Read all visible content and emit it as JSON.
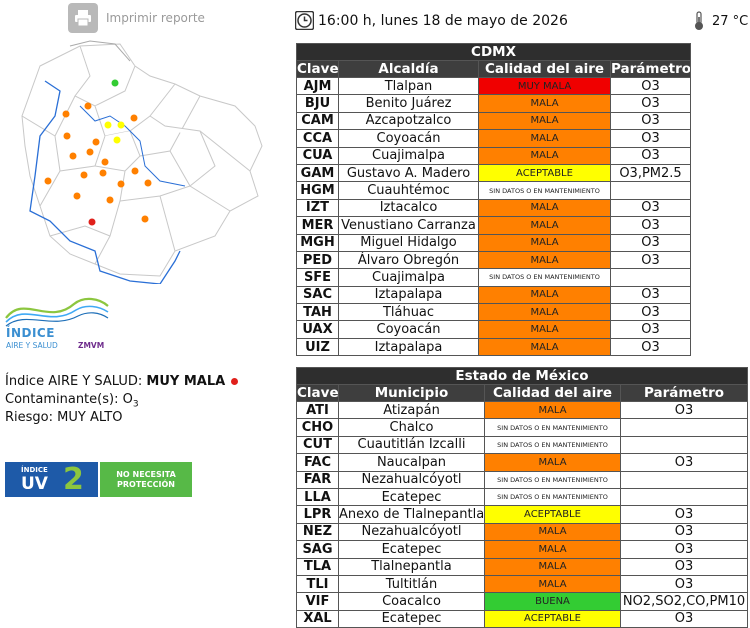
{
  "print": {
    "label": "Imprimir reporte",
    "icon": "printer-icon"
  },
  "header": {
    "datetime": "16:00 h, lunes 18 de mayo de 2026",
    "temperature": "27 °C",
    "clock_icon": "clock-icon",
    "thermo_icon": "thermometer-icon"
  },
  "logo": {
    "line1": "ÍNDICE",
    "line2": "AIRE Y SALUD",
    "line3": "ZMVM"
  },
  "indice": {
    "label": "Índice AIRE Y SALUD:",
    "value": "MUY MALA",
    "contaminante_label": "Contaminante(s):",
    "contaminante_value": "O",
    "contaminante_sub": "3",
    "riesgo_label": "Riesgo:",
    "riesgo_value": "MUY ALTO"
  },
  "uv": {
    "label1": "ÍNDICE",
    "label2": "UV",
    "value": "2",
    "advice_line1": "NO NECESITA",
    "advice_line2": "PROTECCIÓN"
  },
  "colors": {
    "mala": "#ff8000",
    "muy_mala": "#f00000",
    "aceptable": "#ffff00",
    "buena": "#33cc33"
  },
  "cdmx": {
    "title": "CDMX",
    "headers": [
      "Clave",
      "Alcaldía",
      "Calidad del aire",
      "Parámetro"
    ],
    "rows": [
      {
        "clave": "AJM",
        "name": "Tlalpan",
        "quality": "MUY MALA",
        "level": "muymala",
        "param": "O3"
      },
      {
        "clave": "BJU",
        "name": "Benito Juárez",
        "quality": "MALA",
        "level": "mala",
        "param": "O3"
      },
      {
        "clave": "CAM",
        "name": "Azcapotzalco",
        "quality": "MALA",
        "level": "mala",
        "param": "O3"
      },
      {
        "clave": "CCA",
        "name": "Coyoacán",
        "quality": "MALA",
        "level": "mala",
        "param": "O3"
      },
      {
        "clave": "CUA",
        "name": "Cuajimalpa",
        "quality": "MALA",
        "level": "mala",
        "param": "O3"
      },
      {
        "clave": "GAM",
        "name": "Gustavo A. Madero",
        "quality": "ACEPTABLE",
        "level": "aceptable",
        "param": "O3,PM2.5"
      },
      {
        "clave": "HGM",
        "name": "Cuauhtémoc",
        "quality": "SIN DATOS O EN MANTENIMIENTO",
        "level": "sin",
        "param": ""
      },
      {
        "clave": "IZT",
        "name": "Iztacalco",
        "quality": "MALA",
        "level": "mala",
        "param": "O3"
      },
      {
        "clave": "MER",
        "name": "Venustiano Carranza",
        "quality": "MALA",
        "level": "mala",
        "param": "O3"
      },
      {
        "clave": "MGH",
        "name": "Miguel Hidalgo",
        "quality": "MALA",
        "level": "mala",
        "param": "O3"
      },
      {
        "clave": "PED",
        "name": "Álvaro Obregón",
        "quality": "MALA",
        "level": "mala",
        "param": "O3"
      },
      {
        "clave": "SFE",
        "name": "Cuajimalpa",
        "quality": "SIN DATOS O EN MANTENIMIENTO",
        "level": "sin",
        "param": ""
      },
      {
        "clave": "SAC",
        "name": "Iztapalapa",
        "quality": "MALA",
        "level": "mala",
        "param": "O3"
      },
      {
        "clave": "TAH",
        "name": "Tláhuac",
        "quality": "MALA",
        "level": "mala",
        "param": "O3"
      },
      {
        "clave": "UAX",
        "name": "Coyoacán",
        "quality": "MALA",
        "level": "mala",
        "param": "O3"
      },
      {
        "clave": "UIZ",
        "name": "Iztapalapa",
        "quality": "MALA",
        "level": "mala",
        "param": "O3"
      }
    ]
  },
  "edomex": {
    "title": "Estado de México",
    "headers": [
      "Clave",
      "Municipio",
      "Calidad del aire",
      "Parámetro"
    ],
    "rows": [
      {
        "clave": "ATI",
        "name": "Atizapán",
        "quality": "MALA",
        "level": "mala",
        "param": "O3"
      },
      {
        "clave": "CHO",
        "name": "Chalco",
        "quality": "SIN DATOS O EN MANTENIMIENTO",
        "level": "sin",
        "param": ""
      },
      {
        "clave": "CUT",
        "name": "Cuautitlán Izcalli",
        "quality": "SIN DATOS O EN MANTENIMIENTO",
        "level": "sin",
        "param": ""
      },
      {
        "clave": "FAC",
        "name": "Naucalpan",
        "quality": "MALA",
        "level": "mala",
        "param": "O3"
      },
      {
        "clave": "FAR",
        "name": "Nezahualcóyotl",
        "quality": "SIN DATOS O EN MANTENIMIENTO",
        "level": "sin",
        "param": ""
      },
      {
        "clave": "LLA",
        "name": "Ecatepec",
        "quality": "SIN DATOS O EN MANTENIMIENTO",
        "level": "sin",
        "param": ""
      },
      {
        "clave": "LPR",
        "name": "Anexo de Tlalnepantla",
        "quality": "ACEPTABLE",
        "level": "aceptable",
        "param": "O3"
      },
      {
        "clave": "NEZ",
        "name": "Nezahualcóyotl",
        "quality": "MALA",
        "level": "mala",
        "param": "O3"
      },
      {
        "clave": "SAG",
        "name": "Ecatepec",
        "quality": "MALA",
        "level": "mala",
        "param": "O3"
      },
      {
        "clave": "TLA",
        "name": "Tlalnepantla",
        "quality": "MALA",
        "level": "mala",
        "param": "O3"
      },
      {
        "clave": "TLI",
        "name": "Tultitlán",
        "quality": "MALA",
        "level": "mala",
        "param": "O3"
      },
      {
        "clave": "VIF",
        "name": "Coacalco",
        "quality": "BUENA",
        "level": "buena",
        "param": "NO2,SO2,CO,PM10"
      },
      {
        "clave": "XAL",
        "name": "Ecatepec",
        "quality": "ACEPTABLE",
        "level": "aceptable",
        "param": "O3"
      }
    ]
  }
}
